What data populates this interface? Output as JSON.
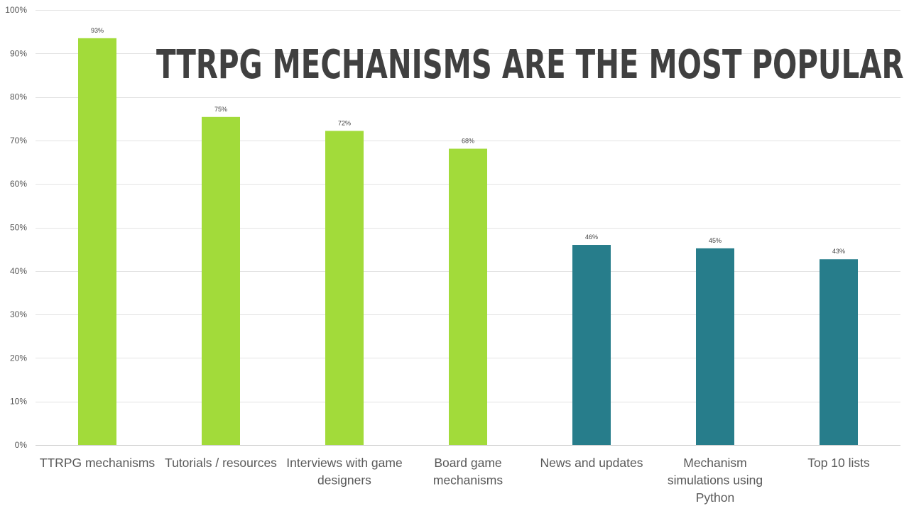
{
  "chart_data": {
    "type": "bar",
    "title": "TTRPG MECHANISMS ARE THE MOST POPULAR",
    "xlabel": "",
    "ylabel": "",
    "ylim": [
      0,
      100
    ],
    "yticks": [
      0,
      10,
      20,
      30,
      40,
      50,
      60,
      70,
      80,
      90,
      100
    ],
    "ytick_labels": [
      "0%",
      "10%",
      "20%",
      "30%",
      "40%",
      "50%",
      "60%",
      "70%",
      "80%",
      "90%",
      "100%"
    ],
    "grid": true,
    "categories": [
      "TTRPG mechanisms",
      "Tutorials / resources",
      "Interviews with game designers",
      "Board game mechanisms",
      "News and updates",
      "Mechanism simulations using Python",
      "Top 10 lists"
    ],
    "category_label_lines": [
      [
        "TTRPG mechanisms"
      ],
      [
        "Tutorials / resources"
      ],
      [
        "Interviews with game",
        "designers"
      ],
      [
        "Board game",
        "mechanisms"
      ],
      [
        "News and updates"
      ],
      [
        "Mechanism",
        "simulations using",
        "Python"
      ],
      [
        "Top 10 lists"
      ]
    ],
    "values": [
      93.5,
      75.4,
      72.2,
      68.1,
      46.0,
      45.2,
      42.7
    ],
    "data_labels": [
      "93%",
      "75%",
      "72%",
      "68%",
      "46%",
      "45%",
      "43%"
    ],
    "bar_colors": [
      "#a2db3a",
      "#a2db3a",
      "#a2db3a",
      "#a2db3a",
      "#277d8b",
      "#277d8b",
      "#277d8b"
    ]
  }
}
